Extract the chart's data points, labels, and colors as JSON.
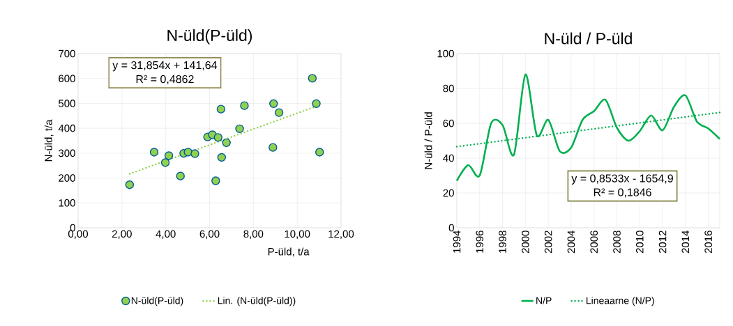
{
  "chart_data": [
    {
      "type": "scatter",
      "title": "N-üld(P-üld)",
      "xlabel": "P-üld, t/a",
      "ylabel": "N-üld, t/a",
      "annotations": [
        "y = 31,854x + 141,64",
        "R² = 0,4862"
      ],
      "xlim": [
        0,
        12
      ],
      "xticks": [
        {
          "value": 0,
          "label": "0,00"
        },
        {
          "value": 2,
          "label": "2,00"
        },
        {
          "value": 4,
          "label": "4,00"
        },
        {
          "value": 6,
          "label": "6,00"
        },
        {
          "value": 8,
          "label": "8,00"
        },
        {
          "value": 10,
          "label": "10,00"
        },
        {
          "value": 12,
          "label": "12,00"
        }
      ],
      "ylim": [
        0,
        700
      ],
      "yticks": [
        0,
        100,
        200,
        300,
        400,
        500,
        600,
        700
      ],
      "grid": true,
      "legend": "bottom",
      "marker": "circle",
      "series": [
        {
          "name": "N-üld(P-üld)",
          "color": "#92d050",
          "x": [
            2.35,
            3.47,
            4.14,
            3.98,
            4.67,
            4.82,
            5.02,
            5.33,
            5.91,
            6.13,
            6.39,
            6.52,
            6.55,
            6.28,
            6.77,
            7.37,
            7.59,
            8.89,
            8.92,
            9.17,
            10.69,
            10.87,
            11.02
          ],
          "values": [
            173,
            304,
            290,
            262,
            208,
            299,
            304,
            298,
            365,
            374,
            363,
            477,
            283,
            189,
            342,
            398,
            491,
            323,
            499,
            463,
            601,
            499,
            304
          ]
        },
        {
          "name": "Lin. (N-üld(P-üld))",
          "color": "#92d050",
          "type": "line",
          "marker": "none",
          "line_style": "dotted",
          "x": [
            2.35,
            11.02
          ],
          "values": [
            217,
            493
          ]
        }
      ]
    },
    {
      "type": "line",
      "title": "N-üld / P-üld",
      "ylabel": "N-üld / P-üld",
      "annotations": [
        "y = 0,8533x - 1654,9",
        "R² = 0,1846"
      ],
      "xlim": [
        1994,
        2017
      ],
      "xticks": [
        1994,
        1996,
        1998,
        2000,
        2002,
        2004,
        2006,
        2008,
        2010,
        2012,
        2014,
        2016
      ],
      "ylim": [
        0,
        100
      ],
      "yticks": [
        0,
        20,
        40,
        60,
        80,
        100
      ],
      "grid": true,
      "legend": "bottom",
      "marker": "none",
      "x": [
        1994,
        1995,
        1996,
        1997,
        1998,
        1999,
        2000,
        2001,
        2002,
        2003,
        2004,
        2005,
        2006,
        2007,
        2008,
        2009,
        2010,
        2011,
        2012,
        2013,
        2014,
        2015,
        2016,
        2017
      ],
      "series": [
        {
          "name": "N/P",
          "color": "#00b050",
          "line_style": "solid",
          "values": [
            27,
            36,
            30,
            60,
            59,
            42,
            88,
            53,
            62,
            44,
            46,
            62,
            67,
            73.5,
            57.5,
            50,
            55.5,
            64.5,
            56,
            69.5,
            76,
            61,
            57,
            51
          ]
        },
        {
          "name": "Lineaarne (N/P)",
          "color": "#00b050",
          "line_style": "dotted",
          "x": [
            1994,
            2017
          ],
          "values": [
            46.6,
            66.2
          ]
        }
      ]
    }
  ]
}
